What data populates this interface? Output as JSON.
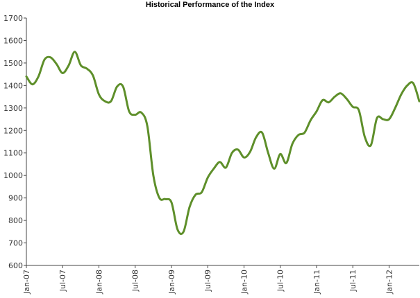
{
  "chart_data": {
    "type": "line",
    "title": "Historical Performance of the Index",
    "xlabel": "",
    "ylabel": "",
    "ylim": [
      600,
      1700
    ],
    "y_ticks": [
      600,
      700,
      800,
      900,
      1000,
      1100,
      1200,
      1300,
      1400,
      1500,
      1600,
      1700
    ],
    "x_ticks": [
      "Jan-07",
      "Jul-07",
      "Jan-08",
      "Jul-08",
      "Jan-09",
      "Jul-09",
      "Jan-10",
      "Jul-10",
      "Jan-11",
      "Jul-11",
      "Jan-12"
    ],
    "grid": false,
    "line_color": "#5e8f2a",
    "series": [
      {
        "x": [
          "2007-01",
          "2007-02",
          "2007-03",
          "2007-04",
          "2007-05",
          "2007-06",
          "2007-07",
          "2007-08",
          "2007-09",
          "2007-10",
          "2007-11",
          "2007-12",
          "2008-01",
          "2008-02",
          "2008-03",
          "2008-04",
          "2008-05",
          "2008-06",
          "2008-07",
          "2008-08",
          "2008-09",
          "2008-10",
          "2008-11",
          "2008-12",
          "2009-01",
          "2009-02",
          "2009-03",
          "2009-04",
          "2009-05",
          "2009-06",
          "2009-07",
          "2009-08",
          "2009-09",
          "2009-10",
          "2009-11",
          "2009-12",
          "2010-01",
          "2010-02",
          "2010-03",
          "2010-04",
          "2010-05",
          "2010-06",
          "2010-07",
          "2010-08",
          "2010-09",
          "2010-10",
          "2010-11",
          "2010-12",
          "2011-01",
          "2011-02",
          "2011-03",
          "2011-04",
          "2011-05",
          "2011-06",
          "2011-07",
          "2011-08",
          "2011-09",
          "2011-10",
          "2011-11",
          "2011-12",
          "2012-01",
          "2012-02",
          "2012-03",
          "2012-04",
          "2012-05",
          "2012-06"
        ],
        "values": [
          1440,
          1405,
          1440,
          1515,
          1525,
          1495,
          1455,
          1490,
          1550,
          1490,
          1475,
          1445,
          1360,
          1330,
          1330,
          1395,
          1395,
          1285,
          1270,
          1280,
          1220,
          1000,
          900,
          895,
          880,
          760,
          750,
          860,
          915,
          925,
          990,
          1030,
          1060,
          1035,
          1100,
          1115,
          1080,
          1105,
          1170,
          1190,
          1100,
          1030,
          1095,
          1055,
          1140,
          1180,
          1190,
          1245,
          1285,
          1335,
          1325,
          1350,
          1365,
          1340,
          1305,
          1290,
          1170,
          1135,
          1255,
          1250,
          1250,
          1300,
          1360,
          1400,
          1410,
          1330
        ]
      }
    ]
  }
}
